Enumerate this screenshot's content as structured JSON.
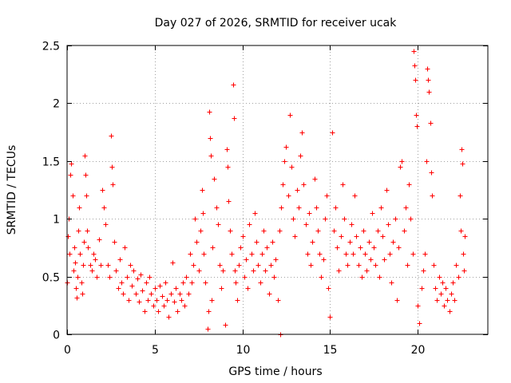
{
  "chart_data": {
    "type": "scatter",
    "title": "Day 027 of 2026, SRMTID for receiver ucak",
    "xlabel": "GPS time / hours",
    "ylabel": "SRMTID / TECUs",
    "xlim": [
      0,
      24
    ],
    "ylim": [
      0,
      2.5
    ],
    "x_ticks": [
      0,
      5,
      10,
      15,
      20
    ],
    "x_tick_labels": [
      "0",
      "5",
      "10",
      "15",
      "20"
    ],
    "y_ticks": [
      0,
      0.5,
      1,
      1.5,
      2,
      2.5
    ],
    "y_tick_labels": [
      "0",
      "0.5",
      "1",
      "1.5",
      "2",
      "2.5"
    ],
    "grid": true,
    "marker": "plus",
    "series": [
      {
        "name": "SRMTID",
        "color": "#ff0000",
        "points": [
          [
            0.0,
            0.45
          ],
          [
            0.05,
            0.85
          ],
          [
            0.1,
            1.0
          ],
          [
            0.15,
            0.7
          ],
          [
            0.2,
            1.38
          ],
          [
            0.25,
            1.48
          ],
          [
            0.3,
            1.2
          ],
          [
            0.35,
            0.55
          ],
          [
            0.4,
            0.75
          ],
          [
            0.45,
            0.62
          ],
          [
            0.5,
            0.4
          ],
          [
            0.55,
            0.32
          ],
          [
            0.6,
            0.5
          ],
          [
            0.65,
            0.9
          ],
          [
            0.7,
            1.1
          ],
          [
            0.75,
            0.7
          ],
          [
            0.8,
            0.45
          ],
          [
            0.85,
            0.35
          ],
          [
            0.9,
            0.6
          ],
          [
            0.95,
            0.8
          ],
          [
            1.0,
            1.55
          ],
          [
            1.05,
            1.38
          ],
          [
            1.1,
            1.2
          ],
          [
            1.15,
            0.9
          ],
          [
            1.2,
            0.75
          ],
          [
            1.3,
            0.6
          ],
          [
            1.4,
            0.55
          ],
          [
            1.5,
            0.7
          ],
          [
            1.6,
            0.65
          ],
          [
            1.7,
            0.5
          ],
          [
            1.8,
            0.82
          ],
          [
            1.9,
            0.6
          ],
          [
            2.0,
            1.25
          ],
          [
            2.1,
            1.1
          ],
          [
            2.2,
            0.95
          ],
          [
            2.3,
            0.6
          ],
          [
            2.4,
            0.5
          ],
          [
            2.5,
            1.72
          ],
          [
            2.55,
            1.45
          ],
          [
            2.6,
            1.3
          ],
          [
            2.7,
            0.8
          ],
          [
            2.8,
            0.55
          ],
          [
            2.9,
            0.4
          ],
          [
            3.0,
            0.65
          ],
          [
            3.1,
            0.45
          ],
          [
            3.2,
            0.35
          ],
          [
            3.3,
            0.75
          ],
          [
            3.4,
            0.5
          ],
          [
            3.5,
            0.3
          ],
          [
            3.6,
            0.6
          ],
          [
            3.7,
            0.42
          ],
          [
            3.8,
            0.55
          ],
          [
            3.9,
            0.35
          ],
          [
            4.0,
            0.48
          ],
          [
            4.1,
            0.28
          ],
          [
            4.2,
            0.52
          ],
          [
            4.3,
            0.38
          ],
          [
            4.4,
            0.2
          ],
          [
            4.5,
            0.45
          ],
          [
            4.6,
            0.3
          ],
          [
            4.7,
            0.5
          ],
          [
            4.8,
            0.35
          ],
          [
            4.9,
            0.25
          ],
          [
            5.0,
            0.4
          ],
          [
            5.1,
            0.3
          ],
          [
            5.2,
            0.2
          ],
          [
            5.3,
            0.42
          ],
          [
            5.4,
            0.33
          ],
          [
            5.5,
            0.25
          ],
          [
            5.6,
            0.45
          ],
          [
            5.7,
            0.3
          ],
          [
            5.8,
            0.15
          ],
          [
            5.9,
            0.35
          ],
          [
            6.0,
            0.62
          ],
          [
            6.1,
            0.28
          ],
          [
            6.2,
            0.4
          ],
          [
            6.3,
            0.2
          ],
          [
            6.4,
            0.35
          ],
          [
            6.5,
            0.3
          ],
          [
            6.6,
            0.45
          ],
          [
            6.7,
            0.25
          ],
          [
            6.8,
            0.5
          ],
          [
            6.9,
            0.35
          ],
          [
            7.0,
            0.7
          ],
          [
            7.1,
            0.45
          ],
          [
            7.2,
            0.6
          ],
          [
            7.3,
            1.0
          ],
          [
            7.4,
            0.8
          ],
          [
            7.5,
            0.55
          ],
          [
            7.6,
            0.9
          ],
          [
            7.7,
            1.25
          ],
          [
            7.75,
            1.05
          ],
          [
            7.8,
            0.7
          ],
          [
            7.9,
            0.45
          ],
          [
            8.0,
            0.05
          ],
          [
            8.05,
            0.2
          ],
          [
            8.1,
            1.93
          ],
          [
            8.15,
            1.7
          ],
          [
            8.2,
            1.55
          ],
          [
            8.25,
            0.3
          ],
          [
            8.3,
            0.75
          ],
          [
            8.4,
            1.35
          ],
          [
            8.5,
            1.1
          ],
          [
            8.6,
            0.95
          ],
          [
            8.7,
            0.6
          ],
          [
            8.8,
            0.4
          ],
          [
            8.9,
            0.55
          ],
          [
            9.0,
            0.08
          ],
          [
            9.1,
            1.6
          ],
          [
            9.15,
            1.45
          ],
          [
            9.2,
            1.15
          ],
          [
            9.3,
            0.9
          ],
          [
            9.4,
            0.7
          ],
          [
            9.45,
            2.16
          ],
          [
            9.5,
            1.87
          ],
          [
            9.55,
            0.55
          ],
          [
            9.6,
            0.45
          ],
          [
            9.7,
            0.3
          ],
          [
            9.8,
            0.6
          ],
          [
            9.9,
            0.75
          ],
          [
            10.0,
            0.85
          ],
          [
            10.1,
            0.5
          ],
          [
            10.2,
            0.65
          ],
          [
            10.3,
            0.4
          ],
          [
            10.4,
            0.95
          ],
          [
            10.5,
            0.7
          ],
          [
            10.6,
            0.55
          ],
          [
            10.7,
            1.05
          ],
          [
            10.8,
            0.8
          ],
          [
            10.9,
            0.6
          ],
          [
            11.0,
            0.45
          ],
          [
            11.1,
            0.7
          ],
          [
            11.2,
            0.9
          ],
          [
            11.3,
            0.55
          ],
          [
            11.4,
            0.75
          ],
          [
            11.5,
            0.35
          ],
          [
            11.6,
            0.6
          ],
          [
            11.7,
            0.8
          ],
          [
            11.8,
            0.5
          ],
          [
            11.9,
            0.65
          ],
          [
            12.0,
            0.3
          ],
          [
            12.1,
            0.9
          ],
          [
            12.15,
            0.0
          ],
          [
            12.2,
            1.1
          ],
          [
            12.3,
            1.3
          ],
          [
            12.4,
            1.5
          ],
          [
            12.5,
            1.62
          ],
          [
            12.6,
            1.2
          ],
          [
            12.7,
            1.9
          ],
          [
            12.8,
            1.45
          ],
          [
            12.9,
            1.0
          ],
          [
            13.0,
            0.85
          ],
          [
            13.1,
            1.25
          ],
          [
            13.2,
            1.1
          ],
          [
            13.3,
            1.55
          ],
          [
            13.4,
            1.75
          ],
          [
            13.5,
            1.3
          ],
          [
            13.6,
            0.95
          ],
          [
            13.7,
            0.7
          ],
          [
            13.8,
            1.05
          ],
          [
            13.9,
            0.6
          ],
          [
            14.0,
            0.8
          ],
          [
            14.1,
            1.35
          ],
          [
            14.2,
            1.1
          ],
          [
            14.3,
            0.9
          ],
          [
            14.4,
            0.7
          ],
          [
            14.5,
            0.5
          ],
          [
            14.6,
            0.65
          ],
          [
            14.7,
            1.0
          ],
          [
            14.8,
            1.2
          ],
          [
            14.9,
            0.4
          ],
          [
            15.0,
            0.15
          ],
          [
            15.1,
            1.75
          ],
          [
            15.2,
            0.9
          ],
          [
            15.3,
            1.1
          ],
          [
            15.4,
            0.75
          ],
          [
            15.5,
            0.55
          ],
          [
            15.6,
            0.85
          ],
          [
            15.7,
            1.3
          ],
          [
            15.8,
            1.0
          ],
          [
            15.9,
            0.7
          ],
          [
            16.0,
            0.6
          ],
          [
            16.1,
            0.8
          ],
          [
            16.2,
            0.95
          ],
          [
            16.3,
            0.7
          ],
          [
            16.4,
            1.2
          ],
          [
            16.5,
            0.85
          ],
          [
            16.6,
            0.6
          ],
          [
            16.7,
            0.75
          ],
          [
            16.8,
            0.5
          ],
          [
            16.9,
            0.9
          ],
          [
            17.0,
            0.7
          ],
          [
            17.1,
            0.55
          ],
          [
            17.2,
            0.8
          ],
          [
            17.3,
            0.65
          ],
          [
            17.4,
            1.05
          ],
          [
            17.5,
            0.75
          ],
          [
            17.6,
            0.6
          ],
          [
            17.7,
            0.9
          ],
          [
            17.8,
            0.5
          ],
          [
            17.9,
            1.1
          ],
          [
            18.0,
            0.85
          ],
          [
            18.1,
            0.65
          ],
          [
            18.2,
            1.25
          ],
          [
            18.3,
            0.95
          ],
          [
            18.4,
            0.7
          ],
          [
            18.5,
            0.45
          ],
          [
            18.6,
            0.8
          ],
          [
            18.7,
            1.0
          ],
          [
            18.8,
            0.3
          ],
          [
            18.9,
            0.75
          ],
          [
            19.0,
            1.45
          ],
          [
            19.1,
            1.5
          ],
          [
            19.2,
            0.9
          ],
          [
            19.3,
            1.1
          ],
          [
            19.4,
            0.6
          ],
          [
            19.5,
            1.3
          ],
          [
            19.6,
            1.0
          ],
          [
            19.7,
            0.7
          ],
          [
            19.75,
            2.45
          ],
          [
            19.8,
            2.33
          ],
          [
            19.85,
            2.2
          ],
          [
            19.9,
            1.9
          ],
          [
            19.95,
            1.8
          ],
          [
            20.0,
            0.25
          ],
          [
            20.1,
            0.1
          ],
          [
            20.2,
            0.4
          ],
          [
            20.3,
            0.55
          ],
          [
            20.4,
            0.7
          ],
          [
            20.5,
            1.5
          ],
          [
            20.55,
            2.3
          ],
          [
            20.6,
            2.2
          ],
          [
            20.65,
            2.1
          ],
          [
            20.7,
            1.83
          ],
          [
            20.75,
            1.4
          ],
          [
            20.8,
            1.2
          ],
          [
            20.9,
            0.6
          ],
          [
            21.0,
            0.4
          ],
          [
            21.1,
            0.3
          ],
          [
            21.2,
            0.5
          ],
          [
            21.3,
            0.35
          ],
          [
            21.4,
            0.45
          ],
          [
            21.5,
            0.25
          ],
          [
            21.6,
            0.4
          ],
          [
            21.7,
            0.3
          ],
          [
            21.8,
            0.2
          ],
          [
            21.9,
            0.35
          ],
          [
            22.0,
            0.45
          ],
          [
            22.1,
            0.3
          ],
          [
            22.2,
            0.6
          ],
          [
            22.3,
            0.5
          ],
          [
            22.4,
            1.2
          ],
          [
            22.45,
            0.9
          ],
          [
            22.5,
            1.6
          ],
          [
            22.55,
            1.48
          ],
          [
            22.6,
            0.7
          ],
          [
            22.65,
            0.55
          ],
          [
            22.7,
            0.85
          ]
        ]
      }
    ]
  }
}
